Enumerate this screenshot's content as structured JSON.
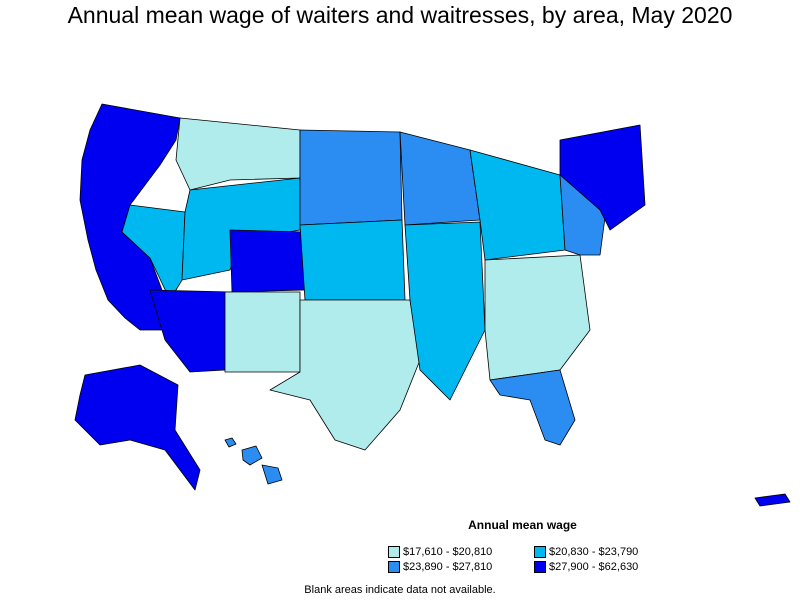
{
  "title": "Annual mean wage of waiters and waitresses, by area, May 2020",
  "legend": {
    "title": "Annual mean wage",
    "items": [
      {
        "label": "$17,610 - $20,810",
        "color": "#b0ecec"
      },
      {
        "label": "$20,830 - $23,790",
        "color": "#00b8f0"
      },
      {
        "label": "$23,890 - $27,810",
        "color": "#2b8cf2"
      },
      {
        "label": "$27,900 - $62,630",
        "color": "#0000f0"
      }
    ]
  },
  "footnote": "Blank areas indicate data not available.",
  "colors": {
    "c1": "#b0ecec",
    "c2": "#00b8f0",
    "c3": "#2b8cf2",
    "c4": "#0000f0",
    "outline": "#000000"
  }
}
